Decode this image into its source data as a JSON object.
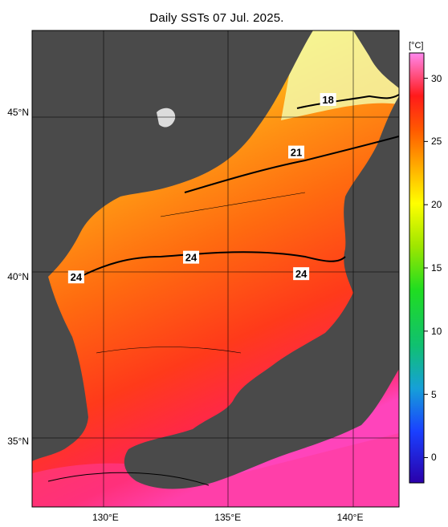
{
  "title": "Daily SSTs 07 Jul. 2025.",
  "map": {
    "lat_ticks": [
      {
        "label": "45°N",
        "lat": 45
      },
      {
        "label": "40°N",
        "lat": 40
      },
      {
        "label": "35°N",
        "lat": 35
      }
    ],
    "lon_ticks": [
      {
        "label": "130°E",
        "lon": 130
      },
      {
        "label": "135°E",
        "lon": 135
      },
      {
        "label": "140°E",
        "lon": 140
      }
    ],
    "contour_labels": [
      {
        "text": "18",
        "lon": 139.1,
        "lat": 45.4
      },
      {
        "text": "21",
        "lon": 137.8,
        "lat": 43.8
      },
      {
        "text": "24",
        "lon": 133.5,
        "lat": 40.6
      },
      {
        "text": "24",
        "lon": 138.0,
        "lat": 40.1
      },
      {
        "text": "24",
        "lon": 128.8,
        "lat": 40.0
      }
    ],
    "colors": {
      "land": "#4a4a4a",
      "warm": "#ff2a2a",
      "hot": "#ff55cc",
      "cool": "#ffff33",
      "grid": "#000000"
    }
  },
  "colorbar": {
    "unit": "[°C]",
    "ticks": [
      {
        "label": "30",
        "value": 30
      },
      {
        "label": "25",
        "value": 25
      },
      {
        "label": "20",
        "value": 20
      },
      {
        "label": "15",
        "value": 15
      },
      {
        "label": "10",
        "value": 10
      },
      {
        "label": "5",
        "value": 5
      },
      {
        "label": "0",
        "value": 0
      }
    ],
    "min": -2,
    "max": 32
  }
}
